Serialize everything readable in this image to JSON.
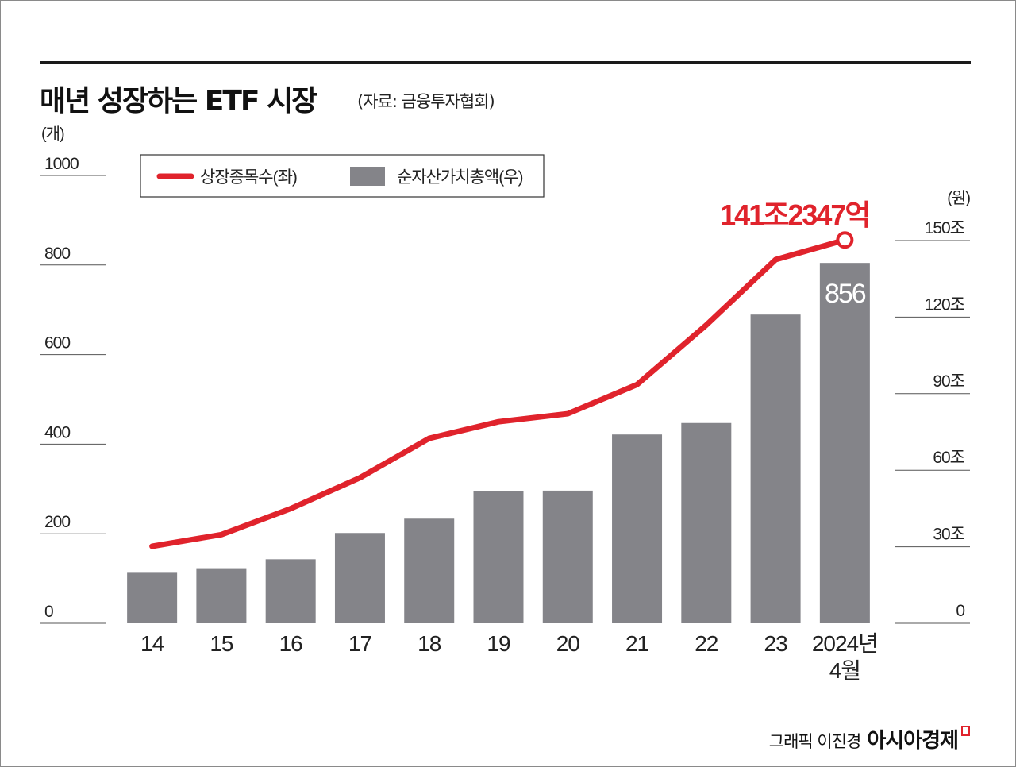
{
  "title": "매년 성장하는 ETF 시장",
  "source": "(자료: 금융투자협회)",
  "credit": {
    "name": "그래픽 이진경",
    "brand": "아시아경제"
  },
  "chart_data": {
    "type": "bar+line",
    "categories": [
      "14",
      "15",
      "16",
      "17",
      "18",
      "19",
      "20",
      "21",
      "22",
      "23",
      "2024년 4월"
    ],
    "legend": {
      "line": "상장종목수(좌)",
      "bar": "순자산가치총액(우)"
    },
    "left_axis": {
      "unit": "(개)",
      "ylim": [
        0,
        1000
      ],
      "ticks": [
        "1000",
        "800",
        "600",
        "400",
        "200",
        "0"
      ]
    },
    "right_axis": {
      "unit": "(원)",
      "ylim": [
        0,
        150
      ],
      "ticks": [
        "150조",
        "120조",
        "90조",
        "60조",
        "30조",
        "0"
      ]
    },
    "series": [
      {
        "name": "상장종목수(좌)",
        "type": "line",
        "axis": "left",
        "color": "#e0232c",
        "values": [
          172,
          198,
          256,
          325,
          413,
          450,
          468,
          533,
          666,
          812,
          856
        ]
      },
      {
        "name": "순자산가치총액(우)",
        "type": "bar",
        "axis": "right",
        "color": "#848489",
        "values": [
          19.8,
          21.6,
          25.1,
          35.4,
          41.0,
          51.7,
          52.0,
          74.0,
          78.5,
          121.0,
          141.2347
        ]
      }
    ],
    "annotations": {
      "last_line_value_label": "141조2347억",
      "last_bar_value_label": "856"
    },
    "grid": false,
    "legend_position": "top-left"
  }
}
